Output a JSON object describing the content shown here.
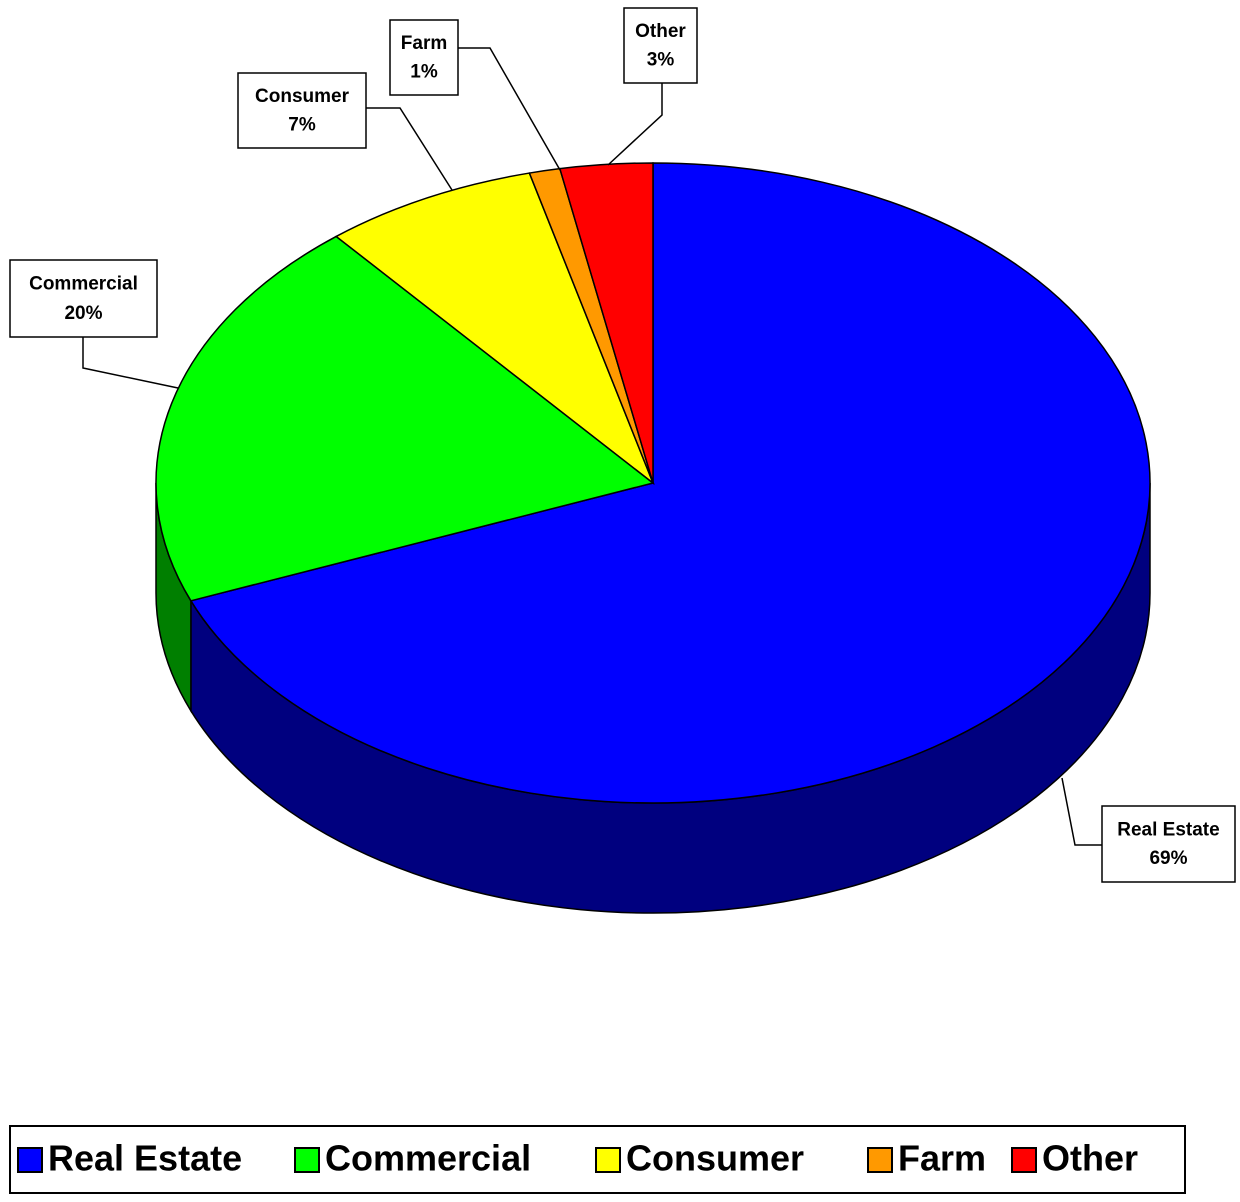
{
  "chart_data": {
    "type": "pie",
    "three_d": true,
    "categories": [
      "Real Estate",
      "Commercial",
      "Consumer",
      "Farm",
      "Other"
    ],
    "values": [
      69,
      20,
      7,
      1,
      3
    ],
    "value_labels": [
      "69%",
      "20%",
      "7%",
      "1%",
      "3%"
    ],
    "colors": [
      "#0000ff",
      "#00ff00",
      "#ffff00",
      "#ff9900",
      "#ff0000"
    ],
    "legend": "bottom"
  }
}
